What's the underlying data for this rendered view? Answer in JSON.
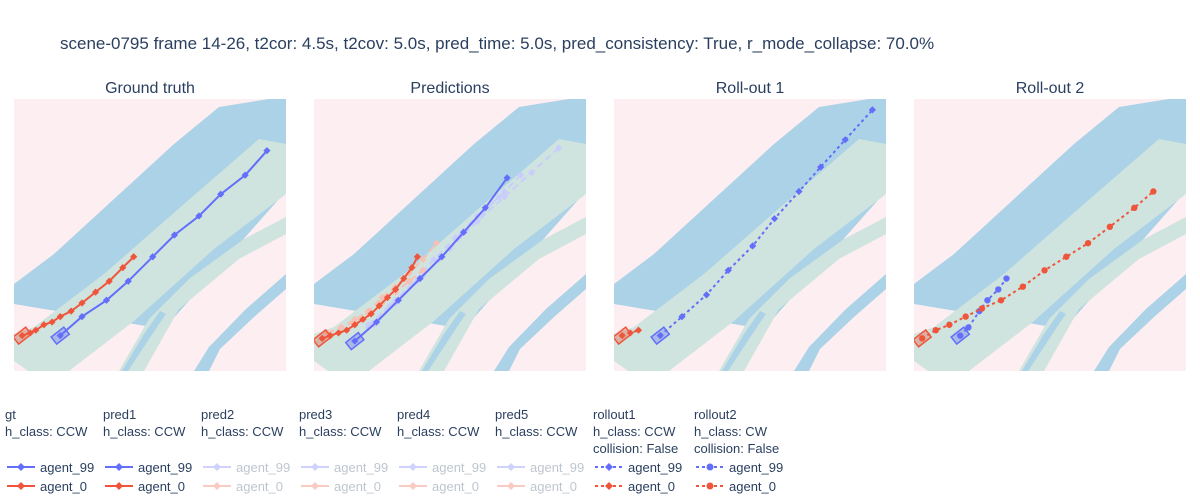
{
  "title": "scene-0795 frame 14-26, t2cor: 4.5s, t2cov: 5.0s, pred_time: 5.0s, pred_consistency: True, r_mode_collapse: 70.0%",
  "colors": {
    "agent_99": "#636efa",
    "agent_0": "#ef553b",
    "road": "#cfe4de",
    "water": "#abd2e6",
    "background": "#fdeef2",
    "faded_agent_99": "#c9cdfb",
    "faded_agent_0": "#f6c0b4"
  },
  "chart_data": [
    {
      "type": "scatter",
      "title": "Ground truth",
      "series": [
        {
          "name": "agent_99",
          "legendgroup": "gt",
          "line": "solid",
          "marker": "diamond",
          "x": [
            0.17,
            0.25,
            0.34,
            0.42,
            0.51,
            0.59,
            0.68,
            0.76,
            0.85,
            0.93
          ],
          "y": [
            0.13,
            0.2,
            0.26,
            0.33,
            0.42,
            0.5,
            0.57,
            0.65,
            0.72,
            0.81
          ]
        },
        {
          "name": "agent_0",
          "legendgroup": "gt",
          "line": "solid",
          "marker": "diamond",
          "x": [
            0.03,
            0.06,
            0.08,
            0.11,
            0.14,
            0.17,
            0.21,
            0.25,
            0.3,
            0.35,
            0.4,
            0.44
          ],
          "y": [
            0.13,
            0.14,
            0.15,
            0.17,
            0.18,
            0.2,
            0.22,
            0.25,
            0.29,
            0.33,
            0.38,
            0.42
          ]
        }
      ]
    },
    {
      "type": "scatter",
      "title": "Predictions",
      "series": [
        {
          "name": "pred5 agent_99",
          "faded": true,
          "line": "dash",
          "marker": "diamond",
          "x": [
            0.2,
            0.3,
            0.4,
            0.5,
            0.6,
            0.7,
            0.8,
            0.9
          ],
          "y": [
            0.17,
            0.26,
            0.35,
            0.45,
            0.55,
            0.64,
            0.73,
            0.82
          ]
        },
        {
          "name": "pred4 agent_99",
          "faded": true,
          "line": "dash",
          "marker": "diamond",
          "x": [
            0.2,
            0.28,
            0.36,
            0.44,
            0.52,
            0.6,
            0.68,
            0.76
          ],
          "y": [
            0.16,
            0.24,
            0.32,
            0.41,
            0.49,
            0.57,
            0.64,
            0.72
          ]
        },
        {
          "name": "pred3 agent_99",
          "faded": true,
          "line": "dash",
          "marker": "diamond",
          "x": [
            0.22,
            0.3,
            0.38,
            0.46,
            0.54,
            0.62,
            0.7
          ],
          "y": [
            0.17,
            0.25,
            0.33,
            0.41,
            0.5,
            0.58,
            0.66
          ]
        },
        {
          "name": "pred2 agent_0",
          "faded": true,
          "line": "dash",
          "marker": "diamond",
          "x": [
            0.05,
            0.1,
            0.15,
            0.2,
            0.25,
            0.3,
            0.35,
            0.4,
            0.45
          ],
          "y": [
            0.14,
            0.16,
            0.19,
            0.22,
            0.27,
            0.31,
            0.36,
            0.41,
            0.47
          ]
        },
        {
          "name": "pred3 agent_0",
          "faded": true,
          "line": "dash",
          "marker": "diamond",
          "x": [
            0.05,
            0.1,
            0.15,
            0.2,
            0.25,
            0.3,
            0.35,
            0.4
          ],
          "y": [
            0.14,
            0.16,
            0.18,
            0.21,
            0.25,
            0.29,
            0.33,
            0.37
          ]
        },
        {
          "name": "pred1 agent_99",
          "faded": false,
          "line": "solid",
          "marker": "diamond",
          "x": [
            0.15,
            0.23,
            0.31,
            0.39,
            0.47,
            0.55,
            0.63,
            0.71
          ],
          "y": [
            0.11,
            0.18,
            0.26,
            0.34,
            0.42,
            0.51,
            0.6,
            0.71
          ]
        },
        {
          "name": "pred1 agent_0",
          "faded": false,
          "line": "solid",
          "marker": "diamond",
          "x": [
            0.03,
            0.06,
            0.09,
            0.12,
            0.15,
            0.18,
            0.21,
            0.24,
            0.27,
            0.3,
            0.33,
            0.36,
            0.38
          ],
          "y": [
            0.12,
            0.13,
            0.14,
            0.15,
            0.17,
            0.19,
            0.21,
            0.24,
            0.27,
            0.3,
            0.34,
            0.38,
            0.42
          ]
        }
      ]
    },
    {
      "type": "scatter",
      "title": "Roll-out 1",
      "series": [
        {
          "name": "agent_99",
          "legendgroup": "rollout1",
          "line": "dot",
          "marker": "diamond",
          "x": [
            0.17,
            0.25,
            0.34,
            0.42,
            0.51,
            0.59,
            0.68,
            0.76,
            0.85,
            0.95
          ],
          "y": [
            0.13,
            0.2,
            0.28,
            0.37,
            0.46,
            0.56,
            0.66,
            0.75,
            0.85,
            0.96
          ]
        },
        {
          "name": "agent_0",
          "legendgroup": "rollout1",
          "line": "dot",
          "marker": "diamond",
          "x": [
            0.03,
            0.06,
            0.09
          ],
          "y": [
            0.13,
            0.14,
            0.15
          ]
        }
      ]
    },
    {
      "type": "scatter",
      "title": "Roll-out 2",
      "series": [
        {
          "name": "agent_99",
          "legendgroup": "rollout2",
          "line": "dot",
          "marker": "circle",
          "x": [
            0.17,
            0.2,
            0.24,
            0.27,
            0.31,
            0.34
          ],
          "y": [
            0.13,
            0.16,
            0.22,
            0.26,
            0.3,
            0.34
          ]
        },
        {
          "name": "agent_0",
          "legendgroup": "rollout2",
          "line": "dot",
          "marker": "circle",
          "x": [
            0.03,
            0.08,
            0.13,
            0.19,
            0.25,
            0.32,
            0.4,
            0.48,
            0.56,
            0.64,
            0.72,
            0.81,
            0.88
          ],
          "y": [
            0.12,
            0.15,
            0.17,
            0.2,
            0.23,
            0.26,
            0.31,
            0.37,
            0.42,
            0.47,
            0.53,
            0.6,
            0.66
          ]
        }
      ]
    }
  ],
  "legend_groups": [
    {
      "id": "gt",
      "lines": [
        "gt",
        "h_class: CCW"
      ],
      "dash": "solid",
      "marker": "diamond",
      "faded": false,
      "items": [
        {
          "label": "agent_99",
          "color": "#636efa"
        },
        {
          "label": "agent_0",
          "color": "#ef553b"
        }
      ]
    },
    {
      "id": "pred1",
      "lines": [
        "pred1",
        "h_class: CCW"
      ],
      "dash": "solid",
      "marker": "diamond",
      "faded": false,
      "items": [
        {
          "label": "agent_99",
          "color": "#636efa"
        },
        {
          "label": "agent_0",
          "color": "#ef553b"
        }
      ]
    },
    {
      "id": "pred2",
      "lines": [
        "pred2",
        "h_class: CCW"
      ],
      "dash": "solid",
      "marker": "diamond",
      "faded": true,
      "items": [
        {
          "label": "agent_99",
          "color": "#636efa"
        },
        {
          "label": "agent_0",
          "color": "#ef553b"
        }
      ]
    },
    {
      "id": "pred3",
      "lines": [
        "pred3",
        "h_class: CCW"
      ],
      "dash": "solid",
      "marker": "diamond",
      "faded": true,
      "items": [
        {
          "label": "agent_99",
          "color": "#636efa"
        },
        {
          "label": "agent_0",
          "color": "#ef553b"
        }
      ]
    },
    {
      "id": "pred4",
      "lines": [
        "pred4",
        "h_class: CCW"
      ],
      "dash": "solid",
      "marker": "diamond",
      "faded": true,
      "items": [
        {
          "label": "agent_99",
          "color": "#636efa"
        },
        {
          "label": "agent_0",
          "color": "#ef553b"
        }
      ]
    },
    {
      "id": "pred5",
      "lines": [
        "pred5",
        "h_class: CCW"
      ],
      "dash": "solid",
      "marker": "diamond",
      "faded": true,
      "items": [
        {
          "label": "agent_99",
          "color": "#636efa"
        },
        {
          "label": "agent_0",
          "color": "#ef553b"
        }
      ]
    },
    {
      "id": "rollout1",
      "lines": [
        "rollout1",
        "h_class: CCW",
        "collision: False"
      ],
      "dash": "dot",
      "marker": "diamond",
      "faded": false,
      "items": [
        {
          "label": "agent_99",
          "color": "#636efa"
        },
        {
          "label": "agent_0",
          "color": "#ef553b"
        }
      ]
    },
    {
      "id": "rollout2",
      "lines": [
        "rollout2",
        "h_class: CW",
        "collision: False"
      ],
      "dash": "dot",
      "marker": "circle",
      "faded": false,
      "items": [
        {
          "label": "agent_99",
          "color": "#636efa"
        },
        {
          "label": "agent_0",
          "color": "#ef553b"
        }
      ]
    }
  ]
}
